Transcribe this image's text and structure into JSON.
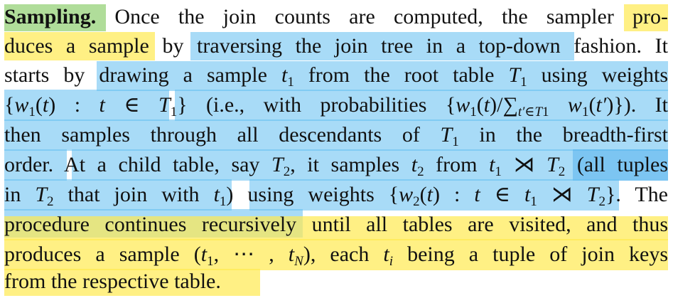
{
  "paragraph": {
    "heading": "Sampling.",
    "l1_rest": " Once the join counts are computed, the sampler pro-",
    "l2": "duces a sample by traversing the join tree in a top-down fashion. It",
    "l3": "starts by drawing a sample t₁ from the root table T₁ using weights",
    "l4": "{w₁(t) : t ∈ T₁} (i.e., with probabilities {w₁(t)/∑t′∈T₁ w₁(t′)}). It",
    "l5": "then samples through all descendants of T₁ in the breadth-first",
    "l6": "order. At a child table, say T₂, it samples t₂ from t₁ ⋊ T₂ (all tuples",
    "l7": "in T₂ that join with t₁) using weights {w₂(t) : t ∈ t₁ ⋊ T₂}. The",
    "l8": "procedure continues recursively until all tables are visited, and thus",
    "l9": "produces a sample (t₁, ⋯ , tN), each tᵢ being a tuple of join keys",
    "l10": "from the respective table."
  },
  "highlight_colors": {
    "yellow": "#FFE950",
    "blue": "#60BEF0",
    "green": "#96D278"
  }
}
